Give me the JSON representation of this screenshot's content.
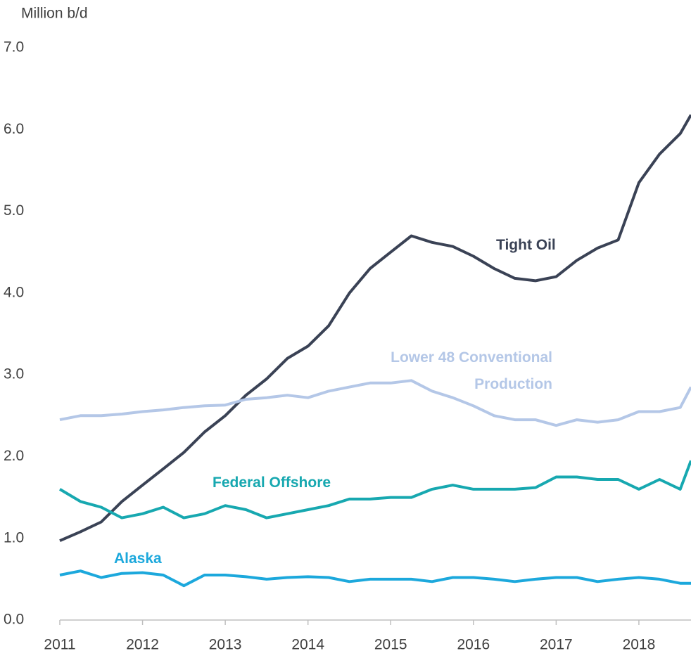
{
  "chart_data": {
    "type": "line",
    "y_label": "Million b/d",
    "x": [
      2011,
      2011.25,
      2011.5,
      2011.75,
      2012,
      2012.25,
      2012.5,
      2012.75,
      2013,
      2013.25,
      2013.5,
      2013.75,
      2014,
      2014.25,
      2014.5,
      2014.75,
      2015,
      2015.25,
      2015.5,
      2015.75,
      2016,
      2016.25,
      2016.5,
      2016.75,
      2017,
      2017.25,
      2017.5,
      2017.75,
      2018,
      2018.25,
      2018.5,
      2018.63
    ],
    "series": [
      {
        "name": "Tight Oil",
        "color": "#3a4255",
        "values": [
          0.97,
          1.08,
          1.2,
          1.45,
          1.65,
          1.85,
          2.05,
          2.3,
          2.5,
          2.75,
          2.95,
          3.2,
          3.35,
          3.6,
          4.0,
          4.3,
          4.5,
          4.7,
          4.62,
          4.57,
          4.45,
          4.3,
          4.18,
          4.15,
          4.2,
          4.4,
          4.55,
          4.65,
          5.35,
          5.7,
          5.95,
          6.18
        ]
      },
      {
        "name": "Lower 48 Conventional Production",
        "color": "#b4c7e7",
        "values": [
          2.45,
          2.5,
          2.5,
          2.52,
          2.55,
          2.57,
          2.6,
          2.62,
          2.63,
          2.7,
          2.72,
          2.75,
          2.72,
          2.8,
          2.85,
          2.9,
          2.9,
          2.93,
          2.8,
          2.72,
          2.62,
          2.5,
          2.45,
          2.45,
          2.38,
          2.45,
          2.42,
          2.45,
          2.55,
          2.55,
          2.6,
          2.85
        ]
      },
      {
        "name": "Federal Offshore",
        "color": "#17a8b0",
        "values": [
          1.6,
          1.45,
          1.38,
          1.25,
          1.3,
          1.38,
          1.25,
          1.3,
          1.4,
          1.35,
          1.25,
          1.3,
          1.35,
          1.4,
          1.48,
          1.48,
          1.5,
          1.5,
          1.6,
          1.65,
          1.6,
          1.6,
          1.6,
          1.62,
          1.75,
          1.75,
          1.72,
          1.72,
          1.6,
          1.72,
          1.6,
          1.95
        ]
      },
      {
        "name": "Alaska",
        "color": "#1ca8dc",
        "values": [
          0.55,
          0.6,
          0.52,
          0.57,
          0.58,
          0.55,
          0.42,
          0.55,
          0.55,
          0.53,
          0.5,
          0.52,
          0.53,
          0.52,
          0.47,
          0.5,
          0.5,
          0.5,
          0.47,
          0.52,
          0.52,
          0.5,
          0.47,
          0.5,
          0.52,
          0.52,
          0.47,
          0.5,
          0.52,
          0.5,
          0.45,
          0.45
        ]
      }
    ],
    "xlim": [
      2011,
      2018.63
    ],
    "xticks": [
      2011,
      2012,
      2013,
      2014,
      2015,
      2016,
      2017,
      2018
    ],
    "ylim": [
      0,
      7
    ],
    "yticks": [
      {
        "value": 0,
        "label": "0.0"
      },
      {
        "value": 1,
        "label": "1.0"
      },
      {
        "value": 2,
        "label": "2.0"
      },
      {
        "value": 3,
        "label": "3.0"
      },
      {
        "value": 4,
        "label": "4.0"
      },
      {
        "value": 5,
        "label": "5.0"
      },
      {
        "value": 6,
        "label": "6.0"
      },
      {
        "value": 7,
        "label": "7.0"
      }
    ],
    "grid": false
  }
}
